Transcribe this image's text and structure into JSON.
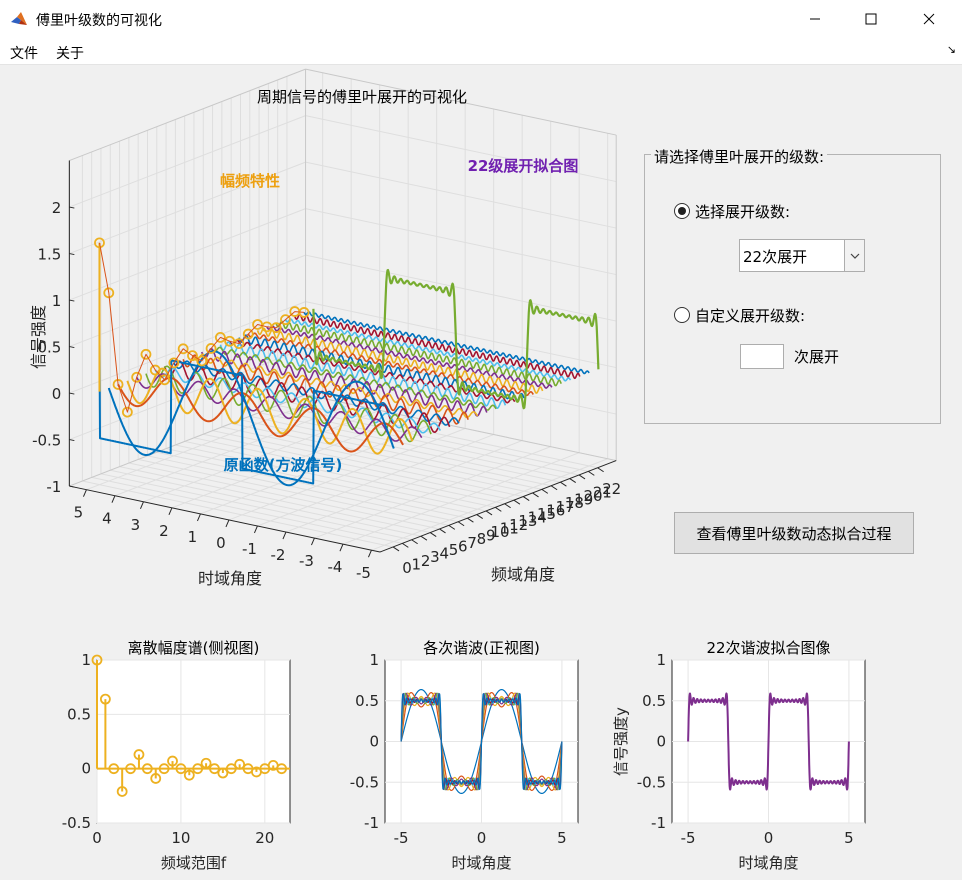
{
  "window": {
    "title": "傅里叶级数的可视化",
    "menu": [
      "文件",
      "关于"
    ],
    "corner_glyph": "↘"
  },
  "main_plot": {
    "title": "周期信号的傅里叶展开的可视化",
    "zlabel": "信号强度",
    "xlabel": "时域角度",
    "ylabel": "频域角度",
    "annotation_amp": "幅频特性",
    "annotation_fit": "22级展开拟合图",
    "annotation_orig": "原函数(方波信号)",
    "z_ticks": [
      "2",
      "1.5",
      "1",
      "0.5",
      "0",
      "-0.5",
      "-1"
    ],
    "t_ticks": [
      "5",
      "4",
      "3",
      "2",
      "1",
      "0",
      "-1",
      "-2",
      "-3",
      "-4",
      "-5"
    ],
    "f_ticks": [
      "0",
      "1",
      "2",
      "3",
      "4",
      "5",
      "6",
      "7",
      "8",
      "9",
      "10",
      "11",
      "12",
      "13",
      "14",
      "15",
      "16",
      "17",
      "18",
      "19",
      "20",
      "21",
      "22"
    ],
    "colors": {
      "amp": "#EDB120",
      "fit": "#7E2F8E",
      "orig": "#0072BD",
      "ann_amp": "#EDA010",
      "ann_fit": "#7020B0",
      "ann_orig": "#0072BD"
    }
  },
  "panel": {
    "title": "请选择傅里叶展开的级数:",
    "radio1_label": "选择展开级数:",
    "radio1_checked": true,
    "select_value": "22次展开",
    "radio2_label": "自定义展开级数:",
    "radio2_checked": false,
    "custom_value": "",
    "suffix": "次展开",
    "button_label": "查看傅里叶级数动态拟合过程"
  },
  "chart_data": [
    {
      "type": "stem",
      "title": "离散幅度谱(侧视图)",
      "xlabel": "频域范围f",
      "ylabel": "",
      "xlim": [
        0,
        23
      ],
      "ylim": [
        -0.5,
        1
      ],
      "x_ticks": [
        "0",
        "10",
        "20"
      ],
      "y_ticks": [
        "1",
        "0.5",
        "0",
        "-0.5"
      ],
      "x": [
        0,
        1,
        2,
        3,
        4,
        5,
        6,
        7,
        8,
        9,
        10,
        11,
        12,
        13,
        14,
        15,
        16,
        17,
        18,
        19,
        20,
        21,
        22
      ],
      "values": [
        1,
        0.64,
        0,
        -0.21,
        0,
        0.13,
        0,
        -0.09,
        0,
        0.07,
        0,
        -0.06,
        0,
        0.05,
        0,
        -0.04,
        0,
        0.04,
        0,
        -0.03,
        0,
        0.03,
        0
      ],
      "color": "#EDB120"
    },
    {
      "type": "line",
      "title": "各次谐波(正视图)",
      "xlabel": "时域角度",
      "ylabel": "",
      "xlim": [
        -6,
        6
      ],
      "ylim": [
        -1,
        1
      ],
      "x_ticks": [
        "-5",
        "0",
        "5"
      ],
      "y_ticks": [
        "1",
        "0.5",
        "0",
        "-0.5",
        "-1"
      ],
      "series_orders": [
        1,
        3,
        5,
        7,
        9,
        13,
        17,
        21
      ],
      "period": 5,
      "amplitude": 0.5
    },
    {
      "type": "line",
      "title": "22次谐波拟合图像",
      "xlabel": "时域角度",
      "ylabel": "信号强度y",
      "xlim": [
        -6,
        6
      ],
      "ylim": [
        -1,
        1
      ],
      "x_ticks": [
        "-5",
        "0",
        "5"
      ],
      "y_ticks": [
        "1",
        "0.5",
        "0",
        "-0.5",
        "-1"
      ],
      "order": 22,
      "period": 5,
      "amplitude": 0.5,
      "color": "#7E2F8E"
    }
  ]
}
